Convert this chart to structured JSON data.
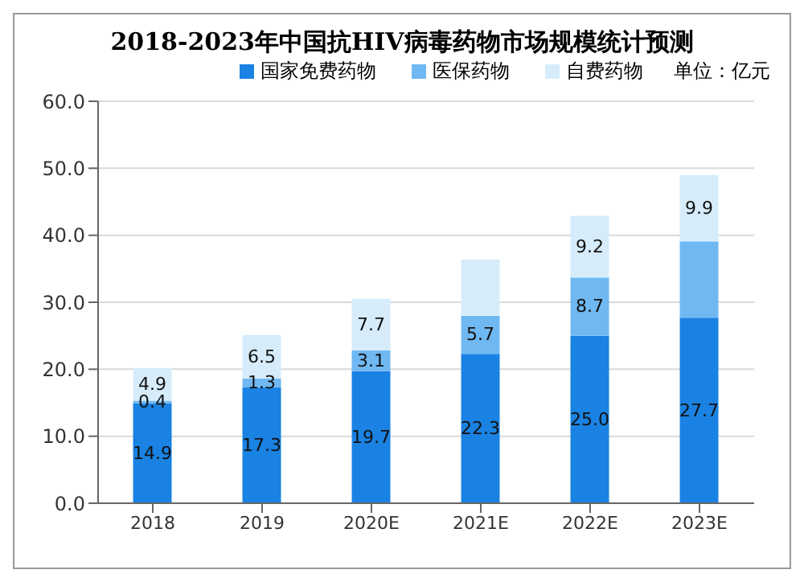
{
  "chart_data": {
    "type": "bar",
    "title": "2018-2023年中国抗HIV病毒药物市场规模统计预测",
    "annotations": [
      "单位：亿元"
    ],
    "categories": [
      "2018",
      "2019",
      "2020E",
      "2021E",
      "2022E",
      "2023E"
    ],
    "stacked": true,
    "legend": "top",
    "grid": "y",
    "ylim": [
      0,
      60
    ],
    "yticks": [
      {
        "value": 0,
        "label": "0.0"
      },
      {
        "value": 10,
        "label": "10.0"
      },
      {
        "value": 20,
        "label": "20.0"
      },
      {
        "value": 30,
        "label": "30.0"
      },
      {
        "value": 40,
        "label": "40.0"
      },
      {
        "value": 50,
        "label": "50.0"
      },
      {
        "value": 60,
        "label": "60.0"
      }
    ],
    "series": [
      {
        "name": "国家免费药物",
        "color": "#1a82e2",
        "values": [
          14.9,
          17.3,
          19.7,
          22.3,
          25.0,
          27.7
        ],
        "value_labels": [
          "14.9",
          "17.3",
          "19.7",
          "22.3",
          "25.0",
          "27.7"
        ]
      },
      {
        "name": "医保药物",
        "color": "#6fb8f2",
        "values": [
          0.4,
          1.3,
          3.1,
          5.7,
          8.7,
          11.4
        ],
        "value_labels": [
          "0.4",
          "1.3",
          "3.1",
          "5.7",
          "8.7",
          null
        ]
      },
      {
        "name": "自费药物",
        "color": "#d6ecfb",
        "values": [
          4.9,
          6.5,
          7.7,
          8.4,
          9.2,
          9.9
        ],
        "value_labels": [
          "4.9",
          "6.5",
          "7.7",
          null,
          "9.2",
          "9.9"
        ]
      }
    ]
  }
}
